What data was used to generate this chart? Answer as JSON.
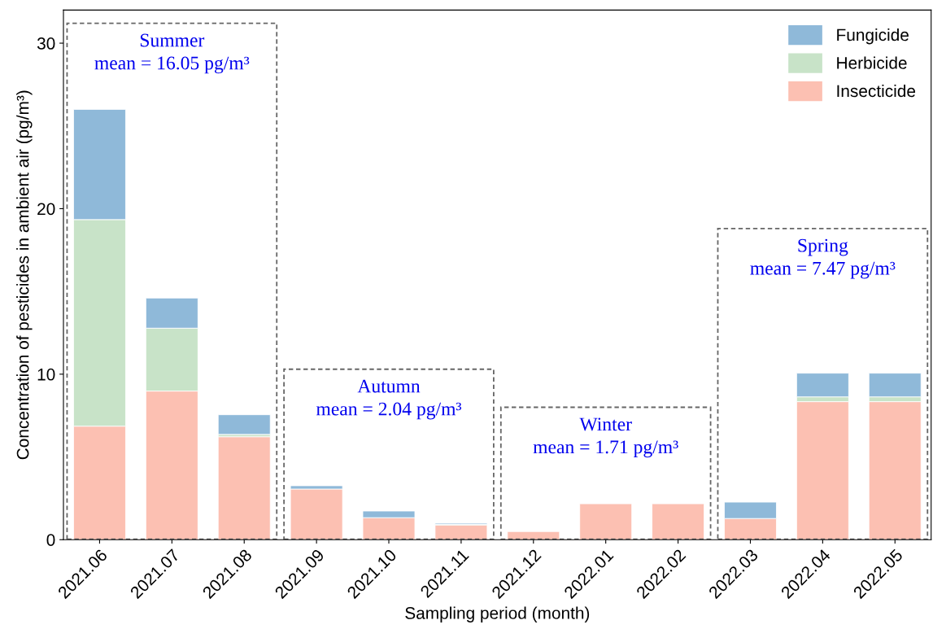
{
  "chart_data": {
    "type": "bar",
    "stacked": true,
    "xlabel": "Sampling period (month)",
    "ylabel": "Concentration of pesticides in ambient air (pg/m³)",
    "categories": [
      "2021.06",
      "2021.07",
      "2021.08",
      "2021.09",
      "2021.10",
      "2021.11",
      "2021.12",
      "2022.01",
      "2022.02",
      "2022.03",
      "2022.04",
      "2022.05"
    ],
    "series": [
      {
        "name": "Insecticide",
        "color": "#fcc0b2",
        "values": [
          6.86,
          8.98,
          6.22,
          3.06,
          1.33,
          0.89,
          0.49,
          2.17,
          2.17,
          1.28,
          8.34,
          8.34
        ]
      },
      {
        "name": "Herbicide",
        "color": "#c8e3c8",
        "values": [
          12.48,
          3.8,
          0.14,
          null,
          null,
          0.03,
          null,
          null,
          null,
          null,
          0.29,
          0.29
        ]
      },
      {
        "name": "Fungicide",
        "color": "#8fb9d9",
        "values": [
          6.66,
          1.82,
          1.19,
          0.2,
          0.4,
          0.07,
          null,
          null,
          null,
          0.99,
          1.43,
          1.43
        ]
      }
    ],
    "ylim": [
      0,
      32
    ],
    "yticks": [
      0,
      10,
      20,
      30
    ],
    "grid": false,
    "legend": "top right",
    "annotations": [
      "Summer\nmean = 16.05 pg/m³",
      "Autumn\nmean = 2.04 pg/m³",
      "Winter\nmean = 1.71 pg/m³",
      "Spring\nmean = 7.47 pg/m³"
    ]
  }
}
